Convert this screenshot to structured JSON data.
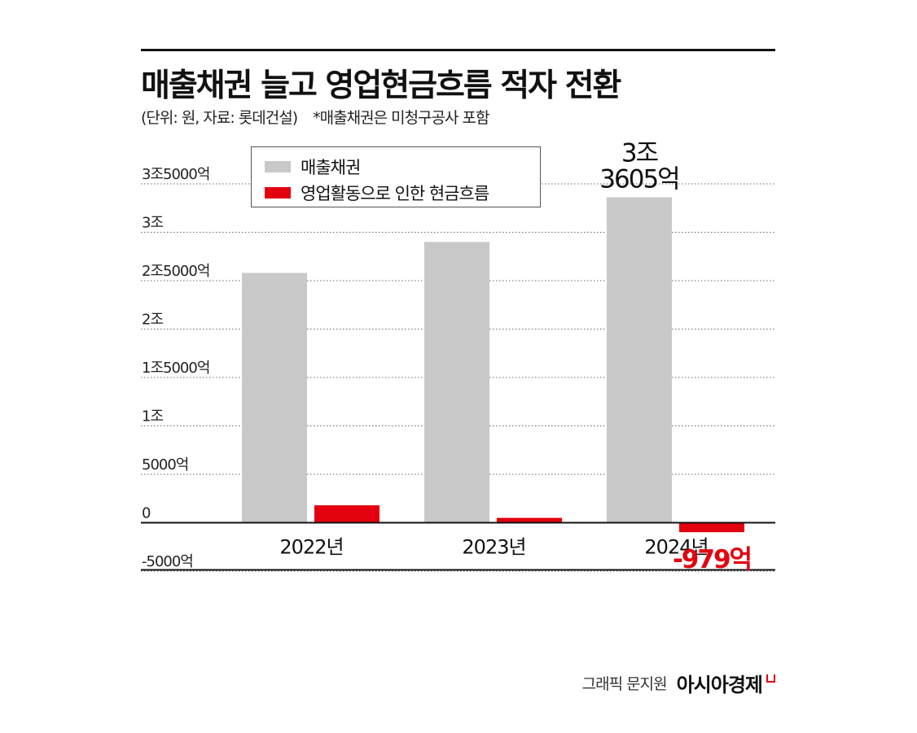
{
  "header": {
    "title": "매출채권 늘고 영업현금흐름 적자 전환",
    "unit_note": "(단위: 원, 자료: 롯데건설)",
    "footnote": "*매출채권은 미청구공사 포함"
  },
  "credit": {
    "text": "그래픽 문지원",
    "brand": "아시아경제"
  },
  "colors": {
    "receivables": "#c8c8c8",
    "cashflow": "#e3000f",
    "grid": "#666666"
  },
  "chart_data": {
    "type": "bar",
    "categories": [
      "2022년",
      "2023년",
      "2024년"
    ],
    "series": [
      {
        "name": "매출채권",
        "values": [
          25800,
          29000,
          33605
        ]
      },
      {
        "name": "영업활동으로 인한 현금흐름",
        "values": [
          1800,
          500,
          -979
        ]
      }
    ],
    "unit": "억원",
    "ylim": [
      -5000,
      35000
    ],
    "ytick_values": [
      35000,
      30000,
      25000,
      20000,
      15000,
      10000,
      5000,
      0,
      -5000
    ],
    "ytick_labels": [
      "3조5000억",
      "3조",
      "2조5000억",
      "2조",
      "1조5000억",
      "1조",
      "5000억",
      "0",
      "-5000억"
    ],
    "annotations": [
      {
        "series": 0,
        "index": 2,
        "lines": [
          "3조",
          "3605억"
        ]
      },
      {
        "series": 1,
        "index": 2,
        "lines": [
          "-979억"
        ]
      }
    ],
    "grid": "dotted",
    "legend": "top-left"
  }
}
